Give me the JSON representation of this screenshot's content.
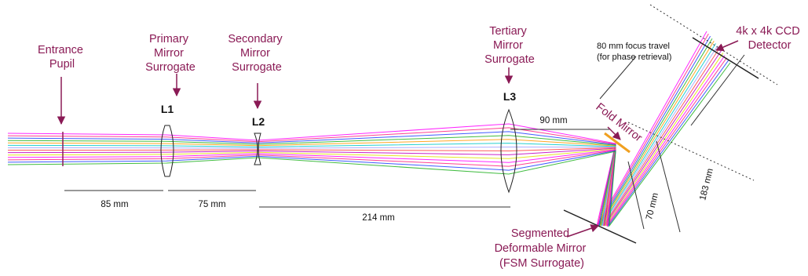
{
  "labels": {
    "entrance_pupil": [
      "Entrance",
      "Pupil"
    ],
    "primary": [
      "Primary",
      "Mirror",
      "Surrogate"
    ],
    "secondary": [
      "Secondary",
      "Mirror",
      "Surrogate"
    ],
    "tertiary": [
      "Tertiary",
      "Mirror",
      "Surrogate"
    ],
    "detector": [
      "4k x 4k CCD",
      "Detector"
    ],
    "fold_mirror": "Fold Mirror",
    "dm": [
      "Segmented",
      "Deformable Mirror",
      "(FSM Surrogate)"
    ],
    "focus_travel": [
      "80 mm focus travel",
      "(for phase retrieval)"
    ]
  },
  "lenses": {
    "l1": "L1",
    "l2": "L2",
    "l3": "L3"
  },
  "dimensions": {
    "d85": "85 mm",
    "d75": "75 mm",
    "d214": "214 mm",
    "d90": "90 mm",
    "d70": "70 mm",
    "d183": "183 mm"
  },
  "colors": {
    "callout": "#8a1a55",
    "fold_mirror": "#f0a020",
    "rays": [
      "#ff00ff",
      "#ff2080",
      "#2040ff",
      "#20b020",
      "#ff9900",
      "#00c8c8",
      "#a0a0ff",
      "#ff4040",
      "#c000c0",
      "#e0e000"
    ]
  }
}
